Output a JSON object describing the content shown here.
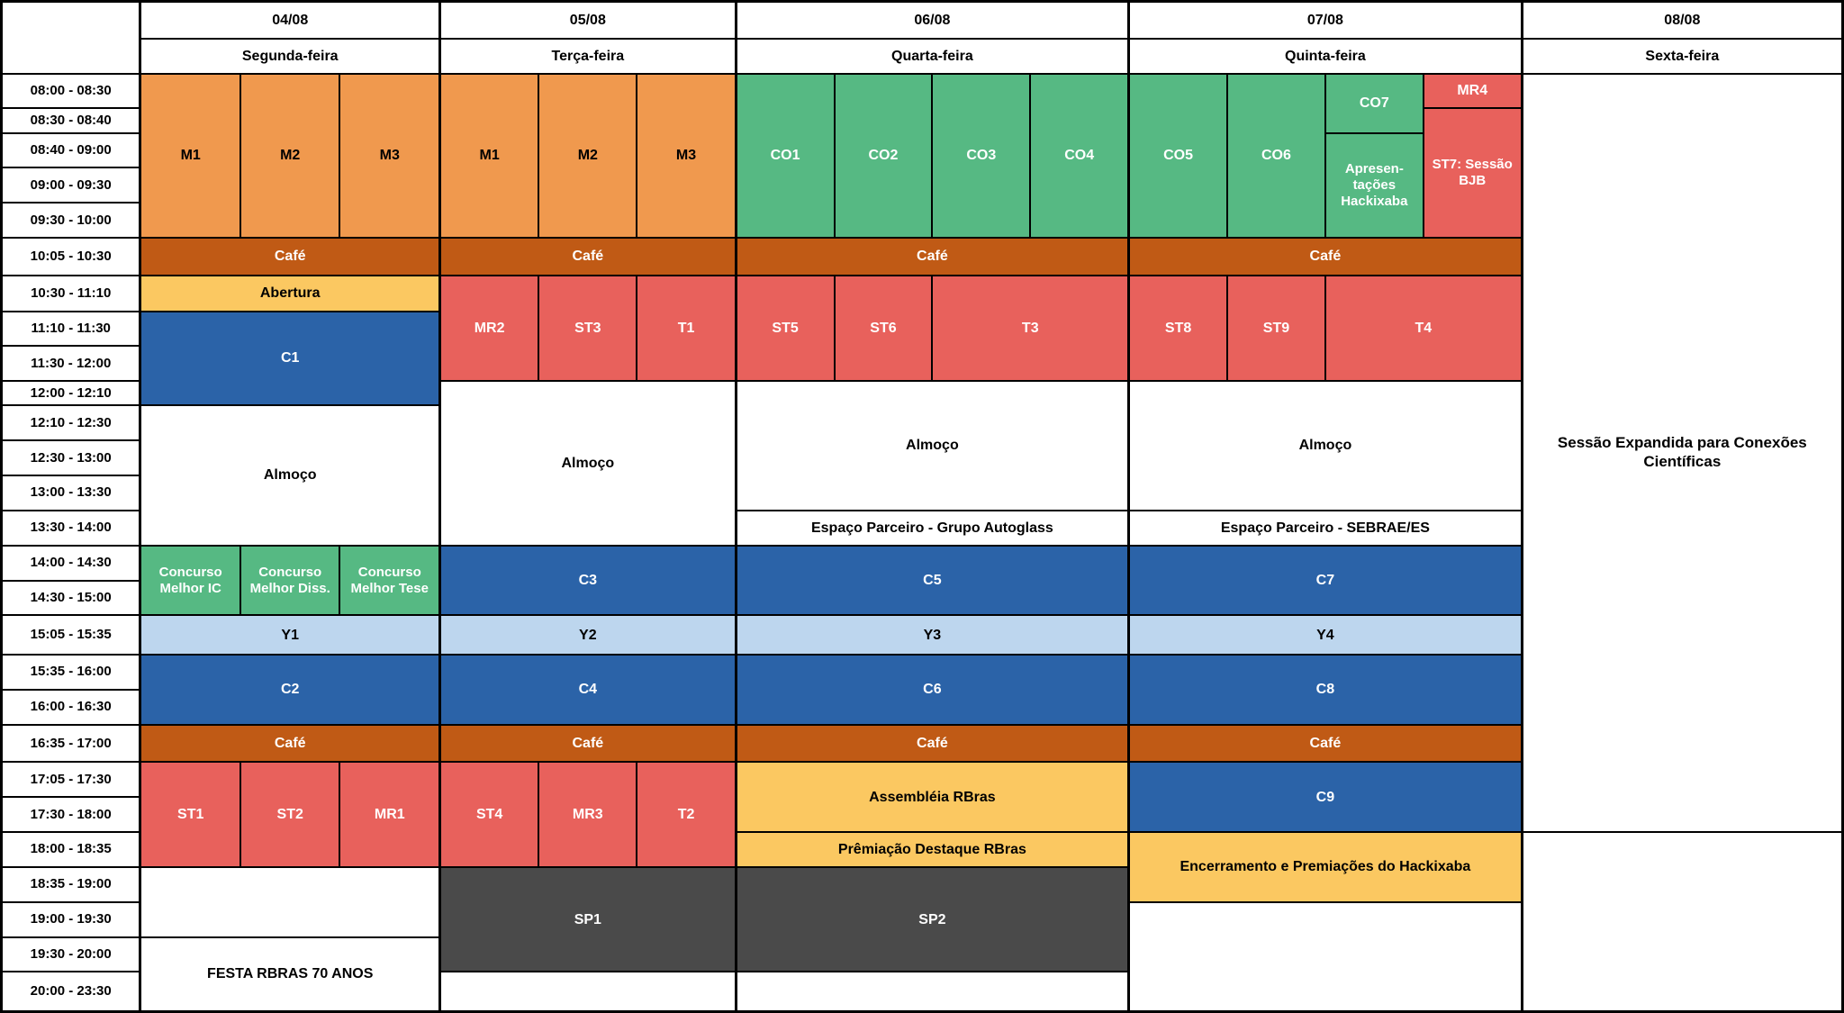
{
  "header": {
    "columns": [
      {
        "date": "04/08",
        "day": "Segunda-feira"
      },
      {
        "date": "05/08",
        "day": "Terça-feira"
      },
      {
        "date": "06/08",
        "day": "Quarta-feira"
      },
      {
        "date": "07/08",
        "day": "Quinta-feira"
      },
      {
        "date": "08/08",
        "day": "Sexta-feira"
      }
    ]
  },
  "time_slots": [
    "08:00 - 08:30",
    "08:30 - 08:40",
    "08:40 - 09:00",
    "09:00 - 09:30",
    "09:30 - 10:00",
    "10:05 - 10:30",
    "10:30 - 11:10",
    "11:10 - 11:30",
    "11:30 - 12:00",
    "12:00 - 12:10",
    "12:10 - 12:30",
    "12:30 - 13:00",
    "13:00 - 13:30",
    "13:30 - 14:00",
    "14:00 - 14:30",
    "14:30 - 15:00",
    "15:05 - 15:35",
    "15:35 - 16:00",
    "16:00 - 16:30",
    "16:35 - 17:00",
    "17:05 - 17:30",
    "17:30 - 18:00",
    "18:00 - 18:35",
    "18:35 - 19:00",
    "19:00 - 19:30",
    "19:30 - 20:00",
    "20:00 - 23:30"
  ],
  "events": {
    "monday": {
      "m1": "M1",
      "m2": "M2",
      "m3": "M3",
      "cafe_am": "Café",
      "abertura": "Abertura",
      "c1": "C1",
      "almoco": "Almoço",
      "concurso_ic": "Concurso Melhor IC",
      "concurso_diss": "Concurso Melhor Diss.",
      "concurso_tese": "Concurso Melhor Tese",
      "y1": "Y1",
      "c2": "C2",
      "cafe_pm": "Café",
      "st1": "ST1",
      "st2": "ST2",
      "mr1": "MR1",
      "festa": "FESTA RBRAS 70 ANOS"
    },
    "tuesday": {
      "m1": "M1",
      "m2": "M2",
      "m3": "M3",
      "cafe_am": "Café",
      "mr2": "MR2",
      "st3": "ST3",
      "t1": "T1",
      "almoco": "Almoço",
      "c3": "C3",
      "y2": "Y2",
      "c4": "C4",
      "cafe_pm": "Café",
      "st4": "ST4",
      "mr3": "MR3",
      "t2": "T2",
      "sp1": "SP1"
    },
    "wednesday": {
      "co1": "CO1",
      "co2": "CO2",
      "co3": "CO3",
      "co4": "CO4",
      "cafe_am": "Café",
      "st5": "ST5",
      "st6": "ST6",
      "t3": "T3",
      "almoco": "Almoço",
      "espaco": "Espaço Parceiro - Grupo Autoglass",
      "c5": "C5",
      "y3": "Y3",
      "c6": "C6",
      "cafe_pm": "Café",
      "assembleia": "Assembléia RBras",
      "premiacao": "Prêmiação Destaque RBras",
      "sp2": "SP2"
    },
    "thursday": {
      "co5": "CO5",
      "co6": "CO6",
      "co7": "CO7",
      "apresentacoes": "Apresen- tações Hackixaba",
      "mr4": "MR4",
      "st7": "ST7: Sessão BJB",
      "cafe_am": "Café",
      "st8": "ST8",
      "st9": "ST9",
      "t4": "T4",
      "almoco": "Almoço",
      "espaco": "Espaço Parceiro - SEBRAE/ES",
      "c7": "C7",
      "y4": "Y4",
      "c8": "C8",
      "cafe_pm": "Café",
      "c9": "C9",
      "encerramento": "Encerramento e Premiações do Hackixaba"
    },
    "friday": {
      "sessao": "Sessão Expandida para Conexões Científicas"
    }
  },
  "colors": {
    "orange": "#F0994E",
    "brown": "#C05A15",
    "yellow": "#FBC861",
    "blue": "#2B63A8",
    "light_blue": "#BDD6EE",
    "green": "#56B983",
    "red": "#E8615C",
    "dark_gray": "#4A4A4A",
    "grid_line": "#000000"
  }
}
